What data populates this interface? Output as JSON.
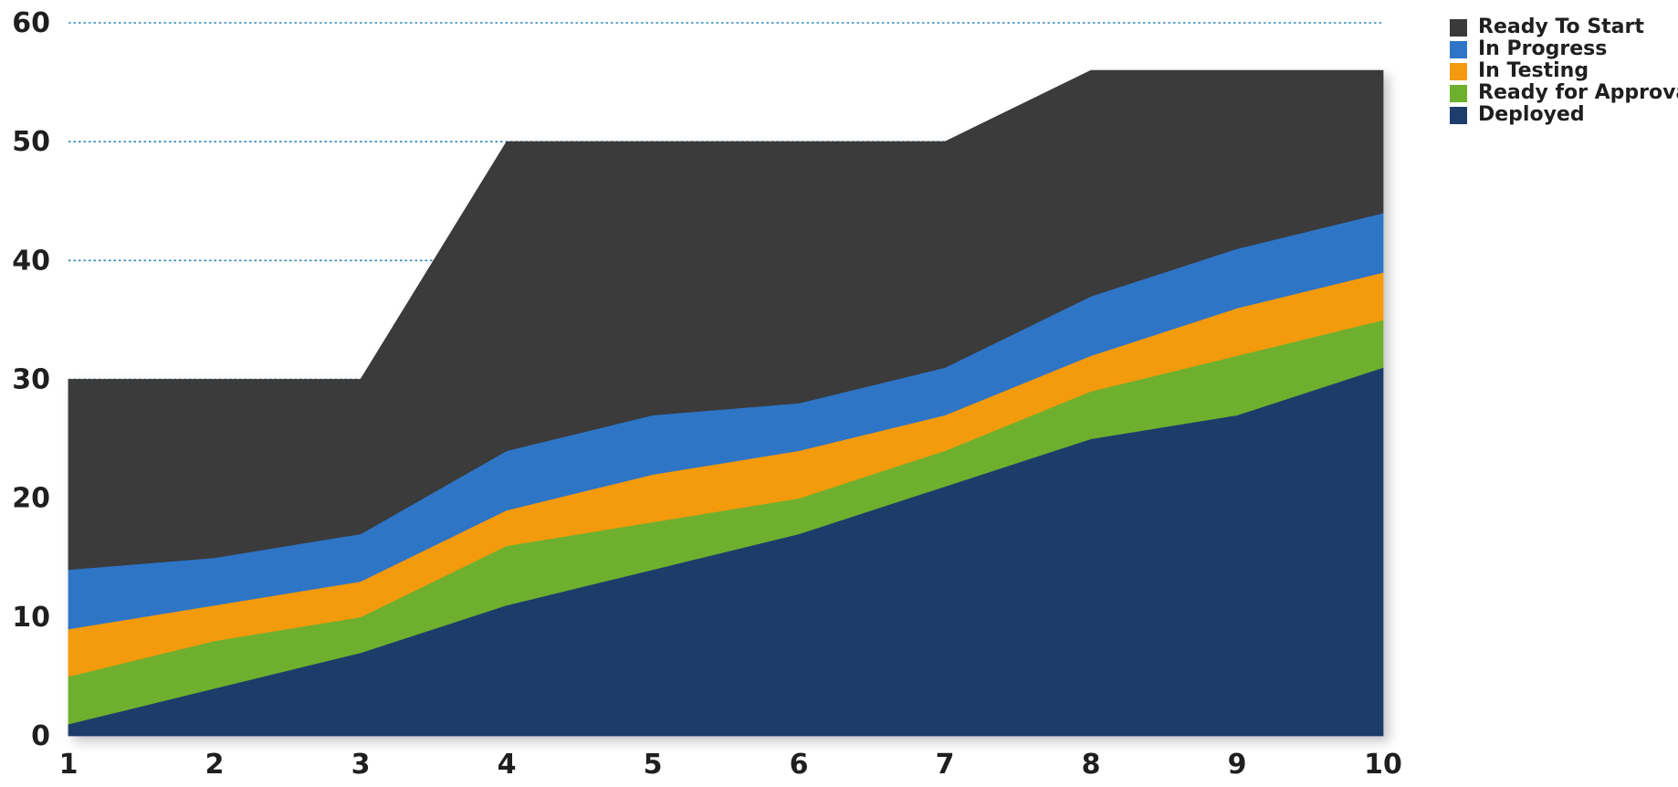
{
  "chart_data": {
    "type": "area",
    "stacked": true,
    "x": [
      1,
      2,
      3,
      4,
      5,
      6,
      7,
      8,
      9,
      10
    ],
    "ylim": [
      0,
      60
    ],
    "yticks": [
      0,
      10,
      20,
      30,
      40,
      50,
      60
    ],
    "grid": "horizontal dotted",
    "legend_position": "top-right",
    "title": "",
    "xlabel": "",
    "ylabel": "",
    "series": [
      {
        "name": "Deployed",
        "color": "#1f3d6b",
        "values": [
          1,
          4,
          7,
          11,
          14,
          17,
          21,
          25,
          27,
          31
        ]
      },
      {
        "name": "Ready for Approval",
        "color": "#6eb02e",
        "values": [
          4,
          4,
          3,
          5,
          4,
          3,
          3,
          4,
          5,
          4
        ]
      },
      {
        "name": "In Testing",
        "color": "#f39a11",
        "values": [
          4,
          3,
          3,
          3,
          4,
          4,
          3,
          3,
          4,
          4
        ]
      },
      {
        "name": "In Progress",
        "color": "#2f74c6",
        "values": [
          5,
          4,
          4,
          5,
          5,
          4,
          4,
          5,
          5,
          5
        ]
      },
      {
        "name": "Ready To Start",
        "color": "#3a3a3a",
        "values": [
          16,
          15,
          13,
          26,
          23,
          22,
          19,
          19,
          15,
          12
        ]
      }
    ],
    "legend_order": [
      "Ready To Start",
      "In Progress",
      "In Testing",
      "Ready for Approval",
      "Deployed"
    ]
  }
}
